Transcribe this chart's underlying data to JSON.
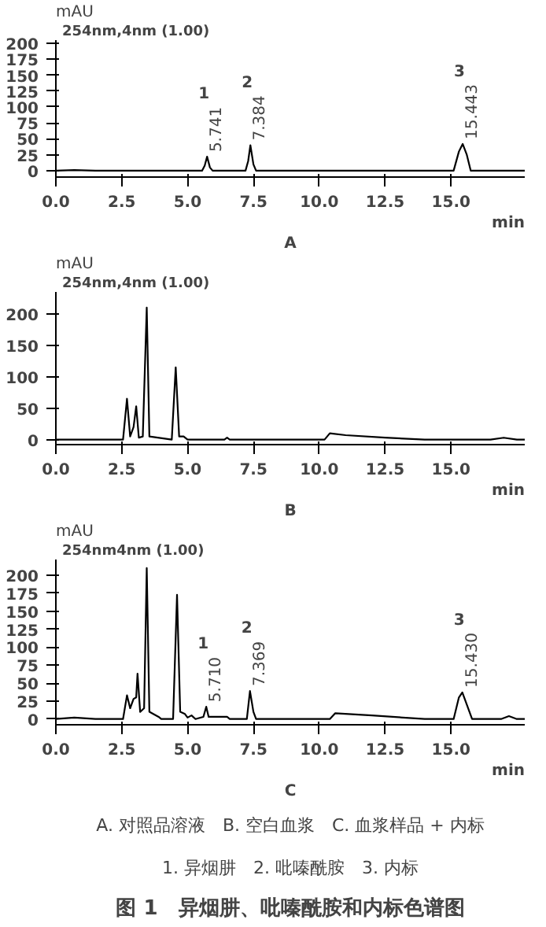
{
  "chart_data": [
    {
      "type": "line",
      "title": "A",
      "subtitle": "254nm,4nm (1.00)",
      "xlabel": "min",
      "ylabel": "mAU",
      "xlim": [
        0,
        17.8
      ],
      "ylim": [
        -10,
        205
      ],
      "xticks": [
        {
          "value": 0,
          "label": "0.0"
        },
        2.5,
        {
          "value": 5,
          "label": "5.0"
        },
        7.5,
        {
          "value": 10,
          "label": "10.0"
        },
        12.5,
        {
          "value": 15,
          "label": "15.0"
        }
      ],
      "yticks": [
        0,
        25,
        50,
        75,
        100,
        125,
        150,
        175,
        200
      ],
      "grid": false,
      "series": [
        {
          "color": "#000000",
          "x": [
            0,
            0.7,
            1.5,
            5.55,
            5.65,
            5.741,
            5.85,
            5.95,
            7.2,
            7.3,
            7.384,
            7.5,
            7.6,
            15.1,
            15.3,
            15.443,
            15.6,
            15.75,
            17.8
          ],
          "values": [
            0,
            1,
            0,
            0,
            8,
            22,
            5,
            0,
            0,
            15,
            40,
            10,
            0,
            0,
            30,
            42,
            25,
            0,
            0
          ]
        }
      ],
      "annotations": [
        {
          "text": "5.741",
          "x": 5.741,
          "y": 22
        },
        {
          "text": "7.384",
          "x": 7.384,
          "y": 40
        },
        {
          "text": "15.443",
          "x": 15.443,
          "y": 42
        },
        "1",
        "2",
        "3"
      ]
    },
    {
      "type": "line",
      "title": "B",
      "subtitle": "254nm,4nm (1.00)",
      "xlabel": "min",
      "ylabel": "mAU",
      "xlim": [
        0,
        17.8
      ],
      "ylim": [
        -8,
        235
      ],
      "xticks": [
        {
          "value": 0,
          "label": "0.0"
        },
        2.5,
        {
          "value": 5,
          "label": "5.0"
        },
        7.5,
        {
          "value": 10,
          "label": "10.0"
        },
        12.5,
        {
          "value": 15,
          "label": "15.0"
        }
      ],
      "yticks": [
        0,
        50,
        100,
        150,
        200
      ],
      "grid": false,
      "series": [
        {
          "color": "#000000",
          "x": [
            0,
            2.0,
            2.55,
            2.7,
            2.82,
            2.95,
            3.05,
            3.15,
            3.3,
            3.45,
            3.55,
            4.4,
            4.55,
            4.68,
            4.85,
            5.0,
            6.4,
            6.5,
            6.6,
            10.2,
            10.4,
            11,
            12.5,
            14,
            16.5,
            17,
            17.5,
            17.8
          ],
          "values": [
            0,
            0,
            0,
            65,
            5,
            20,
            53,
            3,
            5,
            210,
            5,
            0,
            115,
            5,
            5,
            0,
            0,
            3,
            0,
            0,
            10,
            7,
            3,
            0,
            0,
            3,
            0,
            0
          ]
        }
      ]
    },
    {
      "type": "line",
      "title": "C",
      "subtitle": "254nm4nm (1.00)",
      "xlabel": "min",
      "ylabel": "mAU",
      "xlim": [
        0,
        17.8
      ],
      "ylim": [
        -8,
        222
      ],
      "xticks": [
        {
          "value": 0,
          "label": "0.0"
        },
        2.5,
        {
          "value": 5,
          "label": "5.0"
        },
        7.5,
        {
          "value": 10,
          "label": "10.0"
        },
        12.5,
        {
          "value": 15,
          "label": "15.0"
        }
      ],
      "yticks": [
        0,
        25,
        50,
        75,
        100,
        125,
        150,
        175,
        200
      ],
      "grid": false,
      "series": [
        {
          "color": "#000000",
          "x": [
            0,
            0.7,
            1.5,
            2.55,
            2.7,
            2.82,
            2.95,
            3.05,
            3.1,
            3.2,
            3.35,
            3.45,
            3.55,
            3.9,
            4.0,
            4.45,
            4.6,
            4.72,
            4.9,
            5.0,
            5.15,
            5.3,
            5.6,
            5.71,
            5.8,
            6.5,
            6.6,
            7.25,
            7.369,
            7.5,
            7.6,
            10.4,
            10.6,
            12,
            14,
            15.1,
            15.3,
            15.43,
            15.6,
            15.8,
            16.9,
            17.2,
            17.5,
            17.8
          ],
          "values": [
            0,
            2,
            0,
            0,
            33,
            15,
            28,
            30,
            63,
            10,
            15,
            210,
            10,
            3,
            0,
            0,
            173,
            10,
            7,
            2,
            5,
            0,
            3,
            17,
            3,
            3,
            0,
            0,
            39,
            10,
            0,
            0,
            8,
            5,
            0,
            0,
            30,
            37,
            20,
            0,
            0,
            4,
            0,
            0
          ]
        }
      ],
      "annotations": [
        {
          "text": "5.710",
          "x": 5.71,
          "y": 17
        },
        {
          "text": "7.369",
          "x": 7.369,
          "y": 39
        },
        {
          "text": "15.430",
          "x": 15.43,
          "y": 37
        },
        "1",
        "2",
        "3"
      ]
    },
    {
      "type": "other",
      "title": "图 1　异烟肼、吡嗪酰胺和内标色谱图",
      "annotations": [
        "A. 对照品溶液　B. 空白血浆　C. 血浆样品 + 内标",
        "1. 异烟肼　2. 吡嗪酰胺　3. 内标"
      ]
    }
  ]
}
